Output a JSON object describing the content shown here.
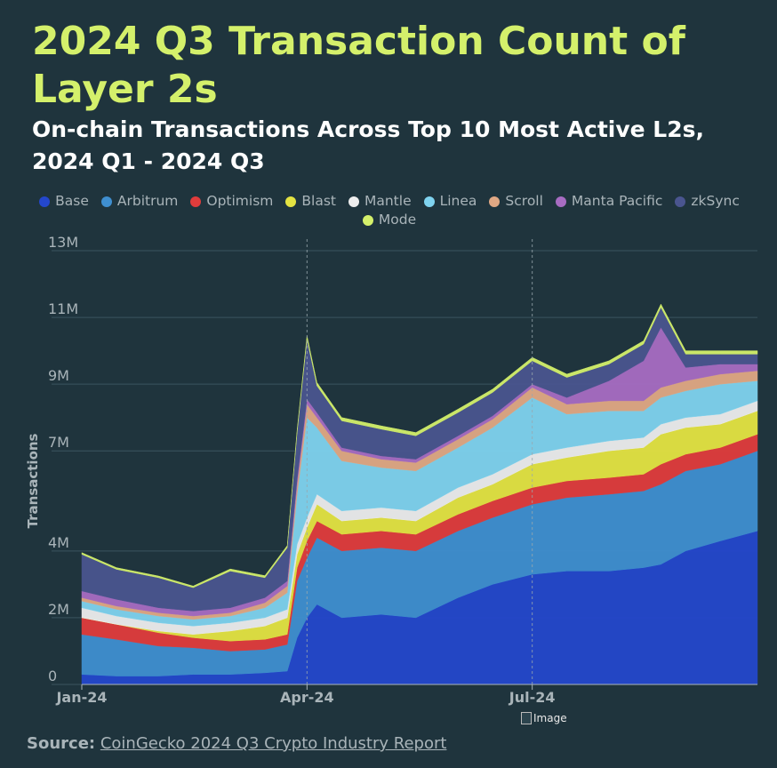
{
  "title": "2024 Q3 Transaction Count of Layer 2s",
  "subtitle": "On-chain Transactions Across Top 10 Most Active L2s, 2024 Q1 - 2024 Q3",
  "source": {
    "label": "Source:",
    "text": "CoinGecko 2024 Q3 Crypto Industry Report"
  },
  "image_placeholder": "Image",
  "chart_data": {
    "type": "area",
    "stacked": true,
    "title": "2024 Q3 Transaction Count of Layer 2s",
    "subtitle": "On-chain Transactions Across Top 10 Most Active L2s, 2024 Q1 - 2024 Q3",
    "xlabel": "",
    "ylabel": "Transactions",
    "ylim": [
      0,
      13000000
    ],
    "y_ticks": [
      {
        "value": 0,
        "label": "0"
      },
      {
        "value": 2000000,
        "label": "2M"
      },
      {
        "value": 4000000,
        "label": "4M"
      },
      {
        "value": 7000000,
        "label": "7M"
      },
      {
        "value": 9000000,
        "label": "9M"
      },
      {
        "value": 11000000,
        "label": "11M"
      },
      {
        "value": 13000000,
        "label": "13M"
      }
    ],
    "x_ticks": [
      {
        "date": "2024-01-01",
        "label": "Jan-24"
      },
      {
        "date": "2024-04-01",
        "label": "Apr-24"
      },
      {
        "date": "2024-07-01",
        "label": "Jul-24"
      }
    ],
    "x_range": [
      "2024-01-01",
      "2024-09-30"
    ],
    "grid": true,
    "legend_position": "top-center",
    "x": [
      "2024-01-01",
      "2024-01-15",
      "2024-02-01",
      "2024-02-15",
      "2024-03-01",
      "2024-03-15",
      "2024-03-24",
      "2024-03-28",
      "2024-04-01",
      "2024-04-05",
      "2024-04-15",
      "2024-05-01",
      "2024-05-15",
      "2024-06-01",
      "2024-06-15",
      "2024-07-01",
      "2024-07-15",
      "2024-08-01",
      "2024-08-15",
      "2024-08-22",
      "2024-09-01",
      "2024-09-15",
      "2024-09-30"
    ],
    "series": [
      {
        "name": "Base",
        "color": "#2447cc",
        "values": [
          300000,
          250000,
          250000,
          300000,
          300000,
          350000,
          400000,
          1400000,
          2000000,
          2400000,
          2000000,
          2100000,
          2000000,
          2600000,
          3000000,
          3300000,
          3400000,
          3400000,
          3500000,
          3600000,
          4000000,
          4300000,
          4600000
        ]
      },
      {
        "name": "Arbitrum",
        "color": "#3f8fd0",
        "values": [
          1200000,
          1100000,
          900000,
          800000,
          700000,
          700000,
          800000,
          1700000,
          1800000,
          2000000,
          2000000,
          2000000,
          2000000,
          2000000,
          2000000,
          2100000,
          2200000,
          2300000,
          2300000,
          2400000,
          2400000,
          2300000,
          2400000
        ]
      },
      {
        "name": "Optimism",
        "color": "#e03c3c",
        "values": [
          500000,
          450000,
          400000,
          300000,
          300000,
          300000,
          300000,
          400000,
          500000,
          500000,
          500000,
          500000,
          500000,
          500000,
          500000,
          500000,
          500000,
          500000,
          500000,
          600000,
          500000,
          500000,
          500000
        ]
      },
      {
        "name": "Blast",
        "color": "#e4e342",
        "values": [
          0,
          0,
          50000,
          100000,
          300000,
          400000,
          500000,
          400000,
          400000,
          500000,
          400000,
          400000,
          400000,
          500000,
          500000,
          700000,
          700000,
          800000,
          800000,
          900000,
          800000,
          700000,
          700000
        ]
      },
      {
        "name": "Mantle",
        "color": "#ededed",
        "values": [
          300000,
          250000,
          250000,
          250000,
          250000,
          250000,
          250000,
          300000,
          300000,
          300000,
          300000,
          300000,
          300000,
          300000,
          300000,
          300000,
          300000,
          300000,
          300000,
          300000,
          300000,
          300000,
          300000
        ]
      },
      {
        "name": "Linea",
        "color": "#7fd3ef",
        "values": [
          200000,
          200000,
          200000,
          200000,
          200000,
          300000,
          500000,
          1500000,
          3000000,
          2000000,
          1500000,
          1200000,
          1200000,
          1200000,
          1400000,
          1700000,
          1000000,
          900000,
          800000,
          800000,
          800000,
          900000,
          600000
        ]
      },
      {
        "name": "Scroll",
        "color": "#e0a884",
        "values": [
          100000,
          100000,
          100000,
          100000,
          100000,
          150000,
          200000,
          300000,
          400000,
          300000,
          300000,
          250000,
          250000,
          250000,
          250000,
          300000,
          300000,
          300000,
          300000,
          300000,
          300000,
          300000,
          300000
        ]
      },
      {
        "name": "Manta Pacific",
        "color": "#a76cc2",
        "values": [
          200000,
          200000,
          150000,
          150000,
          150000,
          150000,
          150000,
          150000,
          150000,
          150000,
          100000,
          100000,
          100000,
          100000,
          100000,
          100000,
          200000,
          600000,
          1200000,
          1800000,
          400000,
          300000,
          200000
        ]
      },
      {
        "name": "zkSync",
        "color": "#4a558f",
        "values": [
          1100000,
          900000,
          900000,
          700000,
          1100000,
          600000,
          1000000,
          1400000,
          1800000,
          800000,
          800000,
          800000,
          700000,
          700000,
          700000,
          700000,
          600000,
          500000,
          500000,
          600000,
          400000,
          300000,
          300000
        ]
      },
      {
        "name": "Mode",
        "color": "#d4f06b",
        "values": [
          50000,
          50000,
          50000,
          50000,
          60000,
          60000,
          60000,
          80000,
          100000,
          100000,
          100000,
          100000,
          100000,
          100000,
          100000,
          100000,
          100000,
          100000,
          100000,
          100000,
          100000,
          100000,
          100000
        ]
      }
    ]
  }
}
